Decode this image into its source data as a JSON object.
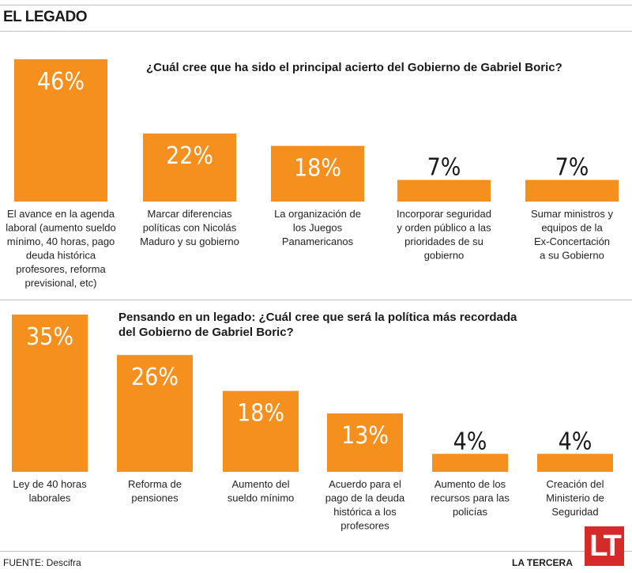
{
  "header": {
    "title": "EL LEGADO"
  },
  "footer": {
    "source": "FUENTE: Descifra",
    "brand": "LA TERCERA",
    "logo_text": "LT"
  },
  "colors": {
    "bar": "#f5901f",
    "logo": "#d42a2a"
  },
  "chart_data": [
    {
      "type": "bar",
      "title": "¿Cuál cree que ha sido el principal acierto del Gobierno de Gabriel Boric?",
      "unit": "%",
      "categories": [
        [
          "El avance en la agenda",
          "laboral (aumento sueldo",
          "mínimo, 40 horas, pago",
          "deuda histórica",
          "profesores, reforma",
          "previsional, etc)"
        ],
        [
          "Marcar diferencias",
          "políticas con Nicolás",
          "Maduro y su gobierno"
        ],
        [
          "La organización de",
          "los Juegos",
          "Panamericanos"
        ],
        [
          "Incorporar seguridad",
          "y orden público a las",
          "prioridades de su",
          "gobierno"
        ],
        [
          "Sumar ministros y",
          "equipos de la",
          "Ex-Concertación",
          "a su Gobierno"
        ]
      ],
      "values": [
        46,
        22,
        18,
        7,
        7
      ],
      "labels": [
        "46%",
        "22%",
        "18%",
        "7%",
        "7%"
      ]
    },
    {
      "type": "bar",
      "title": "Pensando en un legado: ¿Cuál cree que será la política más recordada del Gobierno de Gabriel Boric?",
      "unit": "%",
      "categories": [
        [
          "Ley de 40 horas",
          "laborales"
        ],
        [
          "Reforma de",
          "pensiones"
        ],
        [
          "Aumento del",
          "sueldo mínimo"
        ],
        [
          "Acuerdo para el",
          "pago de la deuda",
          "histórica a los",
          "profesores"
        ],
        [
          "Aumento de los",
          "recursos para las",
          "policías"
        ],
        [
          "Creación del",
          "Ministerio de",
          "Seguridad"
        ]
      ],
      "values": [
        35,
        26,
        18,
        13,
        4,
        4
      ],
      "labels": [
        "35%",
        "26%",
        "18%",
        "13%",
        "4%",
        "4%"
      ]
    }
  ]
}
